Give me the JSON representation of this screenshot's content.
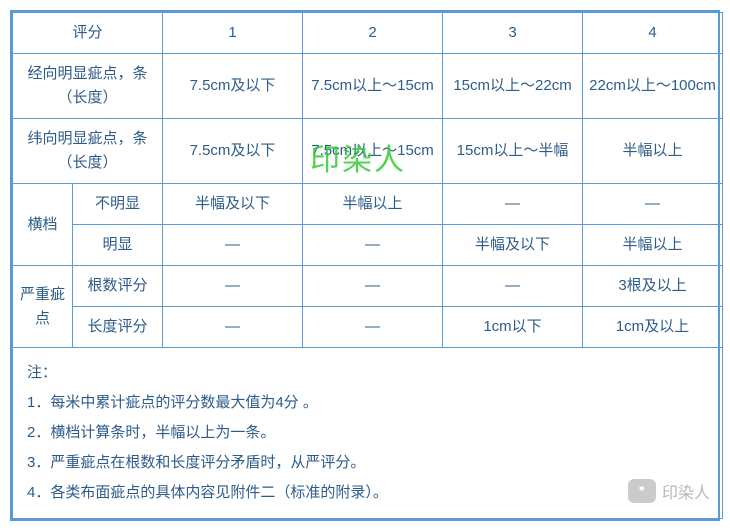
{
  "table": {
    "border_color": "#5b9bd5",
    "text_color": "#2e5c8a",
    "font_size": 15,
    "header": {
      "c0": "评分",
      "c1": "1",
      "c2": "2",
      "c3": "3",
      "c4": "4"
    },
    "row_warp": {
      "label": "经向明显疵点，条（长度）",
      "c1": "7.5cm及以下",
      "c2": "7.5cm以上～15cm",
      "c3": "15cm以上～22cm",
      "c4": "22cm以上～100cm"
    },
    "row_weft": {
      "label": "纬向明显疵点，条（长度）",
      "c1": "7.5cm及以下",
      "c2": "7.5cm以上～15cm",
      "c3": "15cm以上～半幅",
      "c4": "半幅以上"
    },
    "row_bar": {
      "group_label": "横档",
      "sub1_label": "不明显",
      "sub1_c1": "半幅及以下",
      "sub1_c2": "半幅以上",
      "sub1_c3": "—",
      "sub1_c4": "—",
      "sub2_label": "明显",
      "sub2_c1": "—",
      "sub2_c2": "—",
      "sub2_c3": "半幅及以下",
      "sub2_c4": "半幅以上"
    },
    "row_severe": {
      "group_label": "严重疵点",
      "sub1_label": "根数评分",
      "sub1_c1": "—",
      "sub1_c2": "—",
      "sub1_c3": "—",
      "sub1_c4": "3根及以上",
      "sub2_label": "长度评分",
      "sub2_c1": "—",
      "sub2_c2": "—",
      "sub2_c3": "1cm以下",
      "sub2_c4": "1cm及以上"
    },
    "notes": {
      "title": "注：",
      "n1": "1．每米中累计疵点的评分数最大值为4分 。",
      "n2": "2．横档计算条时，半幅以上为一条。",
      "n3": "3．严重疵点在根数和长度评分矛盾时，从严评分。",
      "n4": "4．各类布面疵点的具体内容见附件二（标准的附录）。"
    }
  },
  "watermark": {
    "center_text": "印染人",
    "center_color": "#33cc33",
    "corner_text": "印染人",
    "corner_color": "#888888"
  }
}
